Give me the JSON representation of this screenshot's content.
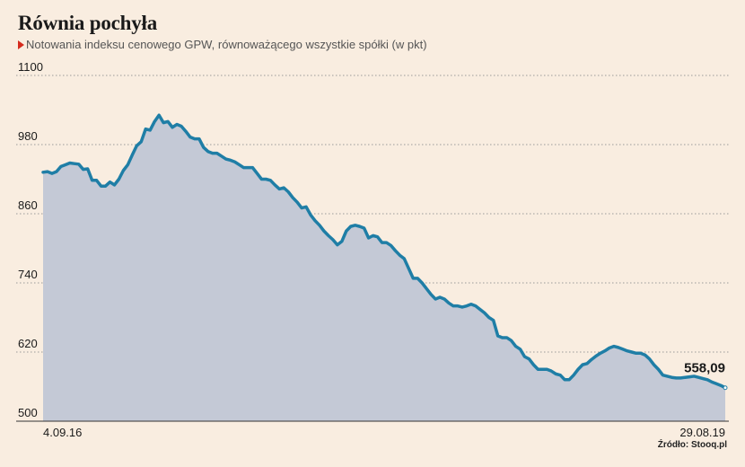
{
  "title": "Równia pochyła",
  "subtitle": "Notowania indeksu cenowego GPW, równoważącego wszystkie spółki (w pkt)",
  "source": "Źródło: Stooq.pl",
  "colors": {
    "line": "#1f7ea6",
    "area": "#c4c9d6",
    "background": "#f9ede0",
    "marker": "#d52b1e"
  },
  "chart_data": {
    "type": "area",
    "ylim": [
      500,
      1100
    ],
    "yticks": [
      "1100",
      "980",
      "860",
      "740",
      "620",
      "500"
    ],
    "x_start_label": "4.09.16",
    "x_end_label": "29.08.19",
    "end_value_label": "558,09",
    "grid": true,
    "values": [
      932,
      933,
      930,
      933,
      942,
      945,
      948,
      947,
      946,
      937,
      938,
      918,
      918,
      908,
      908,
      915,
      910,
      920,
      935,
      945,
      962,
      978,
      985,
      1007,
      1005,
      1020,
      1031,
      1018,
      1020,
      1010,
      1015,
      1012,
      1003,
      993,
      990,
      990,
      975,
      968,
      965,
      965,
      960,
      955,
      953,
      950,
      945,
      940,
      940,
      940,
      930,
      920,
      920,
      918,
      910,
      903,
      905,
      898,
      888,
      880,
      870,
      872,
      858,
      848,
      840,
      830,
      822,
      815,
      806,
      812,
      830,
      838,
      840,
      838,
      835,
      818,
      822,
      820,
      810,
      810,
      805,
      796,
      788,
      782,
      765,
      748,
      748,
      740,
      730,
      720,
      712,
      715,
      712,
      705,
      700,
      700,
      698,
      700,
      703,
      700,
      694,
      688,
      680,
      675,
      648,
      645,
      645,
      640,
      630,
      625,
      612,
      608,
      598,
      590,
      590,
      590,
      587,
      582,
      580,
      572,
      572,
      580,
      590,
      598,
      600,
      607,
      613,
      618,
      622,
      627,
      630,
      628,
      625,
      622,
      620,
      618,
      618,
      615,
      608,
      598,
      590,
      580,
      578,
      576,
      575,
      575,
      576,
      577,
      578,
      576,
      574,
      572,
      568,
      565,
      562,
      558.09
    ]
  }
}
